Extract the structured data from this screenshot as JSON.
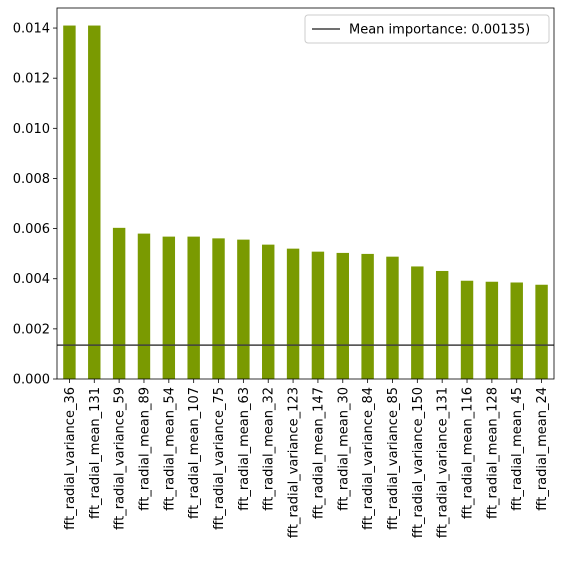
{
  "chart_data": {
    "type": "bar",
    "categories": [
      "fft_radial_variance_36",
      "fft_radial_mean_131",
      "fft_radial_variance_59",
      "fft_radial_mean_89",
      "fft_radial_mean_54",
      "fft_radial_mean_107",
      "fft_radial_variance_75",
      "fft_radial_mean_63",
      "fft_radial_mean_32",
      "fft_radial_variance_123",
      "fft_radial_mean_147",
      "fft_radial_mean_30",
      "fft_radial_variance_84",
      "fft_radial_variance_85",
      "fft_radial_variance_150",
      "fft_radial_variance_131",
      "fft_radial_mean_116",
      "fft_radial_mean_128",
      "fft_radial_mean_45",
      "fft_radial_mean_24"
    ],
    "values": [
      0.0141,
      0.0141,
      0.00603,
      0.0058,
      0.00568,
      0.00568,
      0.00561,
      0.00556,
      0.00536,
      0.0052,
      0.00508,
      0.00503,
      0.00499,
      0.00488,
      0.00449,
      0.00431,
      0.00392,
      0.00388,
      0.00385,
      0.00376
    ],
    "ylim": [
      0,
      0.0148
    ],
    "yticks": [
      "0.000",
      "0.002",
      "0.004",
      "0.006",
      "0.008",
      "0.010",
      "0.012",
      "0.014"
    ],
    "reference_line": {
      "value": 0.00135,
      "label": "Mean importance: 0.00135)",
      "color": "#404040"
    },
    "bar_color": "#7a9a01",
    "legend_position": "top-right",
    "grid": false
  }
}
